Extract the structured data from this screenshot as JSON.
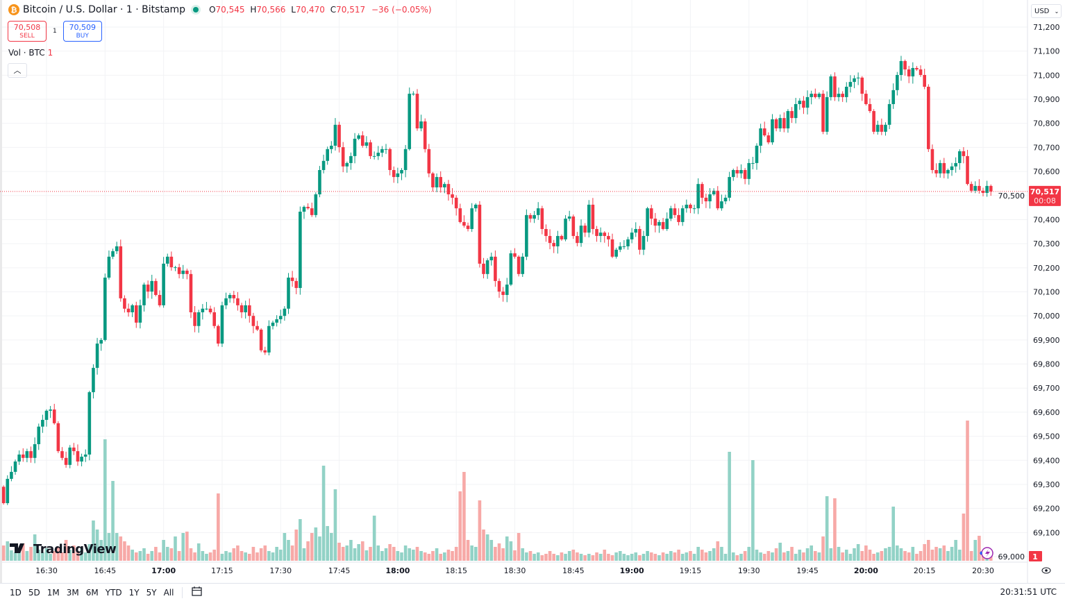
{
  "header": {
    "symbol_title": "Bitcoin / U.S. Dollar · 1 · Bitstamp",
    "ohlc": {
      "o_label": "O",
      "o": "70,545",
      "h_label": "H",
      "h": "70,566",
      "l_label": "L",
      "l": "70,470",
      "c_label": "C",
      "c": "70,517",
      "change": "−36 (−0.05%)"
    },
    "sell": {
      "price": "70,508",
      "label": "SELL"
    },
    "buy": {
      "price": "70,509",
      "label": "BUY"
    },
    "spread": "1",
    "volume_label": "Vol · BTC",
    "volume_value": "1",
    "currency": "USD",
    "logo_icon": "bitcoin-logo-icon"
  },
  "bottom_bar": {
    "ranges": [
      "1D",
      "5D",
      "1M",
      "3M",
      "6M",
      "YTD",
      "1Y",
      "5Y",
      "All"
    ],
    "clock": "20:31:51 UTC"
  },
  "colors": {
    "up": "#089981",
    "down": "#f23645",
    "up_volume": "#92d2c6",
    "down_volume": "#f7a9a7"
  },
  "chart_data": {
    "type": "candlestick",
    "interval": "1 minute",
    "start_time": "16:19",
    "first_open": 69290,
    "closes": [
      69222,
      69323,
      69352,
      69395,
      69424,
      69410,
      69438,
      69410,
      69467,
      69540,
      69568,
      69606,
      69611,
      69554,
      69438,
      69410,
      69381,
      69453,
      69438,
      69395,
      69415,
      69424,
      69683,
      69784,
      69885,
      69900,
      70159,
      70246,
      70269,
      70289,
      70073,
      70030,
      70015,
      70044,
      69972,
      70044,
      70130,
      70101,
      70145,
      70087,
      70044,
      70217,
      70246,
      70202,
      70202,
      70174,
      70188,
      70174,
      70015,
      69958,
      70015,
      70030,
      70030,
      70015,
      69958,
      69885,
      70044,
      70073,
      70087,
      70073,
      70044,
      70015,
      70044,
      70000,
      69958,
      69943,
      69857,
      69848,
      69958,
      69972,
      69986,
      70000,
      70030,
      70159,
      70145,
      70116,
      70433,
      70453,
      70447,
      70419,
      70505,
      70606,
      70644,
      70693,
      70707,
      70794,
      70701,
      70621,
      70635,
      70664,
      70736,
      70750,
      70707,
      70721,
      70664,
      70664,
      70678,
      70693,
      70693,
      70606,
      70577,
      70592,
      70606,
      70693,
      70923,
      70923,
      70779,
      70808,
      70693,
      70592,
      70534,
      70577,
      70534,
      70548,
      70505,
      70491,
      70447,
      70390,
      70375,
      70361,
      70447,
      70462,
      70217,
      70174,
      70231,
      70246,
      70145,
      70101,
      70087,
      70130,
      70260,
      70246,
      70174,
      70246,
      70419,
      70404,
      70419,
      70447,
      70361,
      70332,
      70303,
      70289,
      70332,
      70318,
      70404,
      70413,
      70332,
      70303,
      70375,
      70346,
      70462,
      70361,
      70332,
      70346,
      70332,
      70318,
      70246,
      70275,
      70289,
      70289,
      70318,
      70346,
      70361,
      70275,
      70332,
      70447,
      70404,
      70375,
      70390,
      70361,
      70404,
      70447,
      70419,
      70390,
      70447,
      70462,
      70447,
      70447,
      70548,
      70491,
      70476,
      70505,
      70520,
      70447,
      70476,
      70491,
      70577,
      70606,
      70592,
      70606,
      70569,
      70635,
      70635,
      70707,
      70779,
      70750,
      70721,
      70817,
      70779,
      70822,
      70779,
      70851,
      70822,
      70880,
      70894,
      70865,
      70909,
      70923,
      70909,
      70923,
      70765,
      70909,
      70995,
      70909,
      70923,
      70909,
      70952,
      70972,
      70987,
      70990,
      70923,
      70880,
      70851,
      70765,
      70794,
      70765,
      70794,
      70880,
      70938,
      71001,
      71059,
      71024,
      70995,
      71030,
      71024,
      71001,
      70952,
      70693,
      70606,
      70592,
      70635,
      70592,
      70606,
      70621,
      70635,
      70684,
      70664,
      70548,
      70520,
      70540,
      70520,
      70511,
      70540,
      70517
    ],
    "volumes": [
      22,
      28,
      15,
      12,
      18,
      25,
      14,
      20,
      38,
      16,
      12,
      18,
      10,
      14,
      20,
      12,
      30,
      16,
      22,
      14,
      18,
      12,
      24,
      58,
      45,
      30,
      175,
      40,
      115,
      40,
      35,
      28,
      22,
      16,
      12,
      14,
      18,
      10,
      14,
      20,
      12,
      30,
      20,
      18,
      35,
      14,
      40,
      42,
      18,
      12,
      25,
      14,
      10,
      12,
      16,
      97,
      10,
      14,
      12,
      18,
      22,
      14,
      12,
      10,
      20,
      12,
      18,
      22,
      14,
      12,
      20,
      16,
      40,
      30,
      22,
      45,
      60,
      18,
      28,
      40,
      48,
      35,
      137,
      50,
      40,
      103,
      26,
      20,
      22,
      30,
      18,
      24,
      28,
      15,
      20,
      65,
      22,
      14,
      18,
      24,
      20,
      14,
      12,
      22,
      18,
      16,
      20,
      14,
      12,
      10,
      14,
      18,
      10,
      12,
      16,
      14,
      20,
      100,
      128,
      30,
      22,
      20,
      87,
      45,
      38,
      30,
      20,
      25,
      18,
      35,
      28,
      15,
      40,
      18,
      12,
      14,
      10,
      12,
      8,
      10,
      14,
      10,
      8,
      12,
      10,
      14,
      16,
      12,
      10,
      8,
      10,
      8,
      12,
      10,
      16,
      10,
      8,
      12,
      14,
      10,
      8,
      10,
      12,
      8,
      10,
      14,
      12,
      10,
      8,
      12,
      10,
      14,
      12,
      16,
      10,
      12,
      14,
      10,
      20,
      16,
      12,
      14,
      18,
      28,
      20,
      10,
      157,
      12,
      8,
      10,
      14,
      20,
      145,
      16,
      12,
      10,
      14,
      12,
      18,
      26,
      12,
      14,
      20,
      10,
      16,
      12,
      18,
      22,
      14,
      12,
      35,
      93,
      18,
      90,
      20,
      12,
      16,
      10,
      18,
      24,
      14,
      22,
      16,
      10,
      12,
      14,
      18,
      20,
      78,
      22,
      18,
      14,
      12,
      20,
      10,
      14,
      24,
      30,
      16,
      20,
      18,
      22,
      14,
      20,
      30,
      16,
      68,
      202,
      14,
      30,
      36,
      12,
      10,
      8
    ],
    "y_ticks": [
      "71,200",
      "71,100",
      "71,000",
      "70,900",
      "70,800",
      "70,700",
      "70,600",
      "70,500",
      "70,400",
      "70,300",
      "70,200",
      "70,100",
      "70,000",
      "69,900",
      "69,800",
      "69,700",
      "69,600",
      "69,500",
      "69,400",
      "69,300",
      "69,200",
      "69,100",
      "69,000"
    ],
    "y_tick_values": [
      71200,
      71100,
      71000,
      70900,
      70800,
      70700,
      70600,
      70500,
      70400,
      70300,
      70200,
      70100,
      70000,
      69900,
      69800,
      69700,
      69600,
      69500,
      69400,
      69300,
      69200,
      69100,
      69000
    ],
    "x_ticks": [
      "16:30",
      "16:45",
      "17:00",
      "17:15",
      "17:30",
      "17:45",
      "18:00",
      "18:15",
      "18:30",
      "18:45",
      "19:00",
      "19:15",
      "19:30",
      "19:45",
      "20:00",
      "20:15",
      "20:30"
    ],
    "x_tick_bold": [
      "17:00",
      "18:00",
      "19:00",
      "20:00"
    ],
    "last_price": "70,517",
    "last_price_value": 70517,
    "countdown": "00:08",
    "volume_badge": "1",
    "ylim": [
      69000,
      71200
    ],
    "grid": true
  }
}
